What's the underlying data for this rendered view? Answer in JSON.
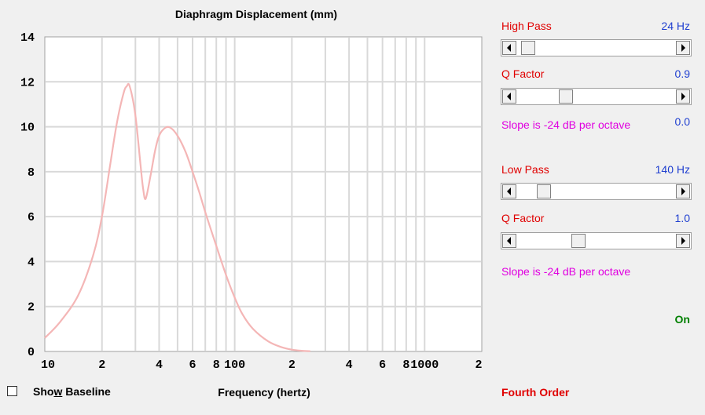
{
  "chart_data": {
    "type": "line",
    "title": "Diaphragm Displacement (mm)",
    "xlabel": "Frequency (hertz)",
    "ylabel": "",
    "xscale": "log",
    "xlim": [
      10,
      2000
    ],
    "ylim": [
      0,
      14
    ],
    "grid": true,
    "x_tick_labels": [
      "10",
      "2",
      "4",
      "6",
      "8",
      "100",
      "2",
      "4",
      "6",
      "8",
      "1000",
      "2"
    ],
    "y_tick_labels": [
      "14",
      "12",
      "10",
      "8",
      "6",
      "4",
      "2",
      "0"
    ],
    "series": [
      {
        "color": "#f4b6b6",
        "x": [
          10,
          12,
          15,
          18,
          20,
          22,
          24,
          26,
          27,
          28,
          30,
          32,
          33,
          34,
          36,
          38,
          40,
          43,
          46,
          50,
          55,
          60,
          65,
          70,
          80,
          90,
          100,
          110,
          125,
          150,
          175,
          200,
          225,
          250
        ],
        "y": [
          0.6,
          1.3,
          2.5,
          4.3,
          6.0,
          8.2,
          10.2,
          11.5,
          11.8,
          11.8,
          10.5,
          8.2,
          7.2,
          6.8,
          7.8,
          8.9,
          9.6,
          9.95,
          9.95,
          9.6,
          8.9,
          8.0,
          7.1,
          6.2,
          4.7,
          3.4,
          2.4,
          1.65,
          1.0,
          0.45,
          0.2,
          0.08,
          0.03,
          0.01
        ]
      }
    ]
  },
  "controls": {
    "high_pass": {
      "label": "High Pass",
      "value": "24 Hz",
      "level": 0.03
    },
    "high_q": {
      "label": "Q Factor",
      "value": "0.9",
      "level": 0.29
    },
    "high_slope": {
      "text": "Slope is -24 dB per octave",
      "value": "0.0"
    },
    "low_pass": {
      "label": "Low Pass",
      "value": "140 Hz",
      "level": 0.14
    },
    "low_q": {
      "label": "Q Factor",
      "value": "1.0",
      "level": 0.38
    },
    "low_slope": {
      "text": "Slope is -24 dB per octave"
    },
    "status": "On",
    "order": "Fourth Order"
  },
  "baseline": {
    "prefix": "Sho",
    "accel": "w",
    "suffix": " Baseline",
    "checked": false
  },
  "colors": {
    "curve": "#f4b6b6",
    "grid": "#d9d9d9",
    "red": "#e00000",
    "blue": "#1f3fd0",
    "magenta": "#e000e0",
    "green": "#008000"
  }
}
